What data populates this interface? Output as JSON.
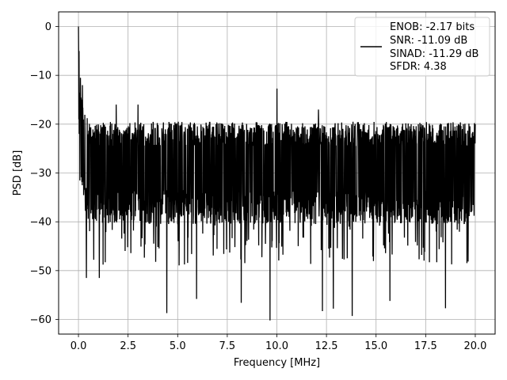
{
  "chart_data": {
    "type": "line",
    "title": "",
    "xlabel": "Frequency [MHz]",
    "ylabel": "PSD [dB]",
    "xlim": [
      -1.0,
      21.0
    ],
    "ylim": [
      -63.0,
      3.0
    ],
    "xticks": [
      0.0,
      2.5,
      5.0,
      7.5,
      10.0,
      12.5,
      15.0,
      17.5,
      20.0
    ],
    "xtick_labels": [
      "0.0",
      "2.5",
      "5.0",
      "7.5",
      "10.0",
      "12.5",
      "15.0",
      "17.5",
      "20.0"
    ],
    "yticks": [
      0,
      -10,
      -20,
      -30,
      -40,
      -50,
      -60
    ],
    "ytick_labels": [
      "0",
      "−10",
      "−20",
      "−30",
      "−40",
      "−50",
      "−60"
    ],
    "grid": true,
    "legend_position": "upper right",
    "line_color": "#000000",
    "series": [
      {
        "name": "",
        "x_start": 0.0,
        "x_end": 20.0,
        "points": 2000,
        "peak": {
          "x": 0.0,
          "y": 0.0
        },
        "baseline_db": -29.0,
        "typical_upper_db": -22.0,
        "typical_lower_db": -37.0,
        "spurs": [
          {
            "x": 0.1,
            "y": -10.5
          },
          {
            "x": 0.2,
            "y": -12.0
          },
          {
            "x": 1.9,
            "y": -16.0
          },
          {
            "x": 3.0,
            "y": -16.0
          },
          {
            "x": 10.0,
            "y": -12.7
          },
          {
            "x": 12.1,
            "y": -17.0
          },
          {
            "x": 20.0,
            "y": -20.0
          }
        ],
        "notches": [
          {
            "x": 0.4,
            "y": -51.5
          },
          {
            "x": 1.05,
            "y": -51.5
          },
          {
            "x": 4.45,
            "y": -58.7
          },
          {
            "x": 5.95,
            "y": -55.8
          },
          {
            "x": 8.2,
            "y": -56.6
          },
          {
            "x": 9.65,
            "y": -60.2
          },
          {
            "x": 12.3,
            "y": -58.3
          },
          {
            "x": 12.85,
            "y": -57.8
          },
          {
            "x": 13.8,
            "y": -59.3
          },
          {
            "x": 15.7,
            "y": -56.2
          },
          {
            "x": 18.5,
            "y": -57.7
          }
        ]
      }
    ],
    "legend": [
      "ENOB: -2.17 bits",
      "SNR: -11.09 dB",
      "SINAD: -11.29 dB",
      "SFDR: 4.38"
    ]
  }
}
